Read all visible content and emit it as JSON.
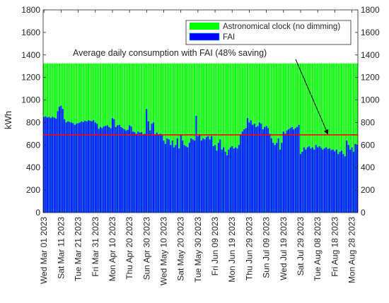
{
  "chart_data": {
    "type": "bar",
    "ylabel": "kWh",
    "ylim": [
      0,
      1800
    ],
    "yticks": [
      0,
      200,
      400,
      600,
      800,
      1000,
      1200,
      1400,
      1600,
      1800
    ],
    "y_axis_right_mirrored": true,
    "grid": false,
    "bars_per_day": 1,
    "x_start_date": "2023-03-01",
    "x_end_date": "2023-08-31",
    "xtick_labels": [
      "Wed Mar 01 2023",
      "Sat Mar 11 2023",
      "Tue Mar 21 2023",
      "Fri Mar 31 2023",
      "Mon Apr 10 2023",
      "Thu Apr 20 2023",
      "Sun Apr 30 2023",
      "Wed May 10 2023",
      "Sat May 20 2023",
      "Tue May 30 2023",
      "Fri Jun 09 2023",
      "Mon Jun 19 2023",
      "Thu Jun 29 2023",
      "Sun Jul 09 2023",
      "Wed Jul 19 2023",
      "Sat Jul 29 2023",
      "Tue Aug 08 2023",
      "Fri Aug 18 2023",
      "Mon Aug 28 2023"
    ],
    "legend_position": "top-right",
    "series": [
      {
        "name": "Astronomical clock (no dimming)",
        "color": "#00ff00",
        "constant_value": 1325
      },
      {
        "name": "FAI",
        "color": "#0000ff",
        "edge_color": "#00aaff",
        "values_per_ten_days": [
          {
            "from": "2023-03-01",
            "values": [
              850,
              855,
              845,
              850,
              840,
              850,
              845,
              835,
              900,
              940
            ]
          },
          {
            "from": "2023-03-11",
            "values": [
              950,
              920,
              830,
              800,
              810,
              805,
              800,
              795,
              780,
              790
            ]
          },
          {
            "from": "2023-03-21",
            "values": [
              795,
              800,
              810,
              805,
              815,
              810,
              820,
              815,
              810,
              820
            ]
          },
          {
            "from": "2023-03-31",
            "values": [
              800,
              790,
              745,
              760,
              750,
              765,
              770,
              775,
              760,
              750
            ]
          },
          {
            "from": "2023-04-10",
            "values": [
              840,
              830,
              760,
              775,
              780,
              760,
              750,
              740,
              730,
              735
            ]
          },
          {
            "from": "2023-04-20",
            "values": [
              775,
              765,
              720,
              715,
              700,
              720,
              710,
              715,
              695,
              700
            ]
          },
          {
            "from": "2023-04-30",
            "values": [
              920,
              810,
              730,
              790,
              800,
              690,
              710,
              690,
              700,
              695
            ]
          },
          {
            "from": "2023-05-10",
            "values": [
              640,
              610,
              660,
              650,
              600,
              640,
              580,
              600,
              660,
              570
            ]
          },
          {
            "from": "2023-05-20",
            "values": [
              690,
              640,
              600,
              590,
              580,
              620,
              660,
              650,
              640,
              860
            ]
          },
          {
            "from": "2023-05-30",
            "values": [
              680,
              690,
              640,
              660,
              650,
              670,
              680,
              650,
              680,
              590
            ]
          },
          {
            "from": "2023-06-09",
            "values": [
              600,
              550,
              620,
              650,
              560,
              580,
              540,
              510,
              560,
              580
            ]
          },
          {
            "from": "2023-06-19",
            "values": [
              590,
              570,
              580,
              570,
              600,
              690,
              720,
              740,
              750,
              840
            ]
          },
          {
            "from": "2023-06-29",
            "values": [
              800,
              820,
              780,
              790,
              760,
              770,
              800,
              790,
              740,
              760
            ]
          },
          {
            "from": "2023-07-09",
            "values": [
              770,
              750,
              700,
              660,
              620,
              600,
              620,
              660,
              560,
              620
            ]
          },
          {
            "from": "2023-07-19",
            "values": [
              720,
              700,
              730,
              740,
              750,
              760,
              740,
              750,
              760,
              780
            ]
          },
          {
            "from": "2023-07-29",
            "values": [
              520,
              540,
              580,
              560,
              580,
              590,
              570,
              580,
              560,
              600
            ]
          },
          {
            "from": "2023-08-08",
            "values": [
              580,
              590,
              575,
              560,
              570,
              580,
              565,
              570,
              555,
              560
            ]
          },
          {
            "from": "2023-08-18",
            "values": [
              545,
              560,
              520,
              540,
              550,
              520,
              500,
              640,
              600,
              560
            ]
          },
          {
            "from": "2023-08-28",
            "values": [
              580,
              540,
              610,
              600
            ]
          }
        ]
      }
    ],
    "reference_line": {
      "value": 690,
      "color": "#ff0000"
    },
    "annotation": {
      "text": "Average daily consumption with FAI (48% saving)",
      "arrow_target": {
        "date": "2023-08-14",
        "value": 690
      }
    }
  }
}
